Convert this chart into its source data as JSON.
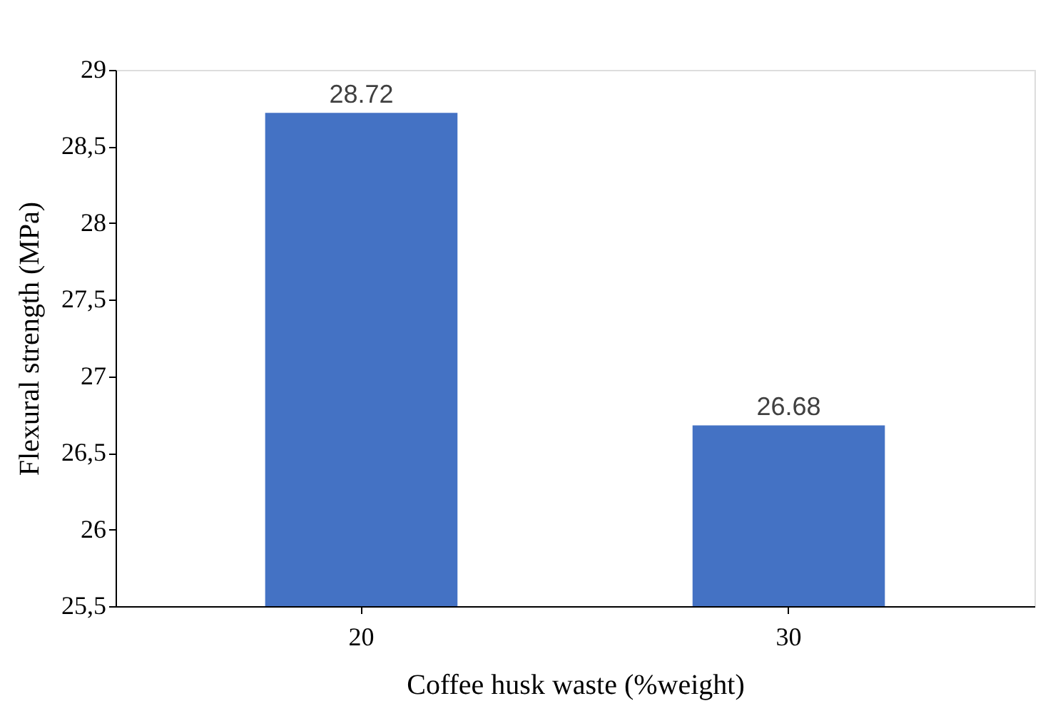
{
  "chart_data": {
    "type": "bar",
    "xlabel": "Coffee husk waste (%weight)",
    "ylabel": "Flexural strength (MPa)",
    "categories": [
      "20",
      "30"
    ],
    "values": [
      28.72,
      26.68
    ],
    "color": "#4472c4",
    "ylim": [
      25.5,
      29
    ],
    "yticks": [
      {
        "value": 25.5,
        "label": "25,5"
      },
      26,
      {
        "value": 26.5,
        "label": "26,5"
      },
      27,
      {
        "value": 27.5,
        "label": "27,5"
      },
      28,
      {
        "value": 28.5,
        "label": "28,5"
      },
      29
    ],
    "data_labels": true,
    "grid": false
  }
}
